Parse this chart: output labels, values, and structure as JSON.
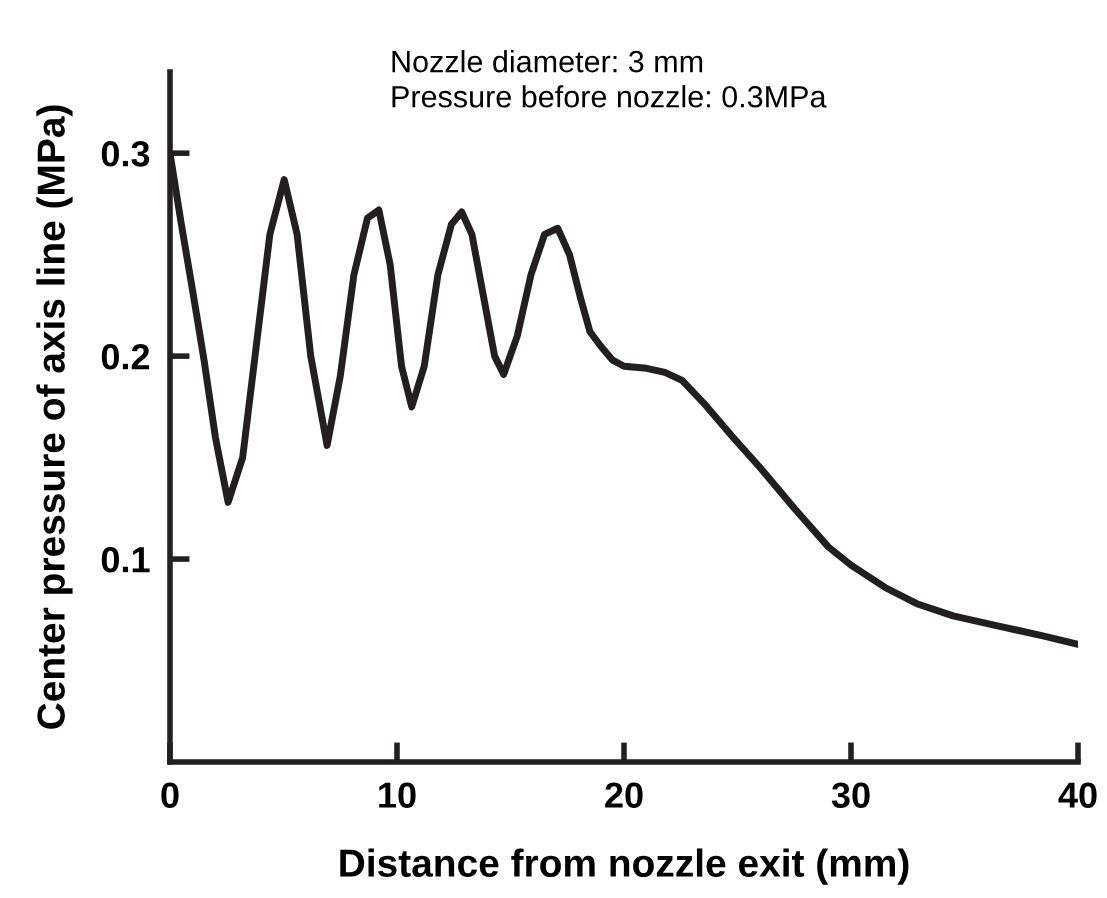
{
  "chart_data": {
    "type": "line",
    "xlabel": "Distance from nozzle exit (mm)",
    "ylabel": "Center pressure of axis line (MPa)",
    "annotations": [
      "Nozzle diameter: 3 mm\nPressure before nozzle: 0.3MPa"
    ],
    "x": [
      0,
      0.5,
      1,
      1.5,
      2,
      2.56,
      3.2,
      3.8,
      4.4,
      5.03,
      5.6,
      6.2,
      6.92,
      7.5,
      8.1,
      8.7,
      9.2,
      9.7,
      10.2,
      10.65,
      11.2,
      11.8,
      12.4,
      12.85,
      13.3,
      13.8,
      14.3,
      14.7,
      15.3,
      15.9,
      16.5,
      17.08,
      17.6,
      18.1,
      18.5,
      18.97,
      19.5,
      20,
      21,
      21.8,
      22.56,
      23.5,
      24.8,
      26,
      27.5,
      29,
      30,
      31.5,
      32.9,
      34.5,
      36.5,
      38.5,
      40
    ],
    "series": [
      {
        "color": "#231f20",
        "values": [
          0.3,
          0.265,
          0.232,
          0.198,
          0.16,
          0.128,
          0.15,
          0.205,
          0.26,
          0.287,
          0.26,
          0.2,
          0.156,
          0.19,
          0.24,
          0.268,
          0.272,
          0.245,
          0.195,
          0.175,
          0.195,
          0.24,
          0.265,
          0.271,
          0.26,
          0.23,
          0.2,
          0.191,
          0.21,
          0.24,
          0.26,
          0.263,
          0.25,
          0.228,
          0.212,
          0.205,
          0.198,
          0.195,
          0.194,
          0.192,
          0.188,
          0.177,
          0.16,
          0.145,
          0.125,
          0.106,
          0.097,
          0.086,
          0.078,
          0.072,
          0.067,
          0.062,
          0.058
        ]
      }
    ],
    "xlim": [
      0,
      40
    ],
    "ylim": [
      0,
      0.34
    ],
    "xticks": [
      0,
      10,
      20,
      30,
      40
    ],
    "yticks": [
      0.1,
      0.2,
      0.3
    ],
    "grid": false,
    "legend": false,
    "marker": "none",
    "line_style": "solid"
  }
}
